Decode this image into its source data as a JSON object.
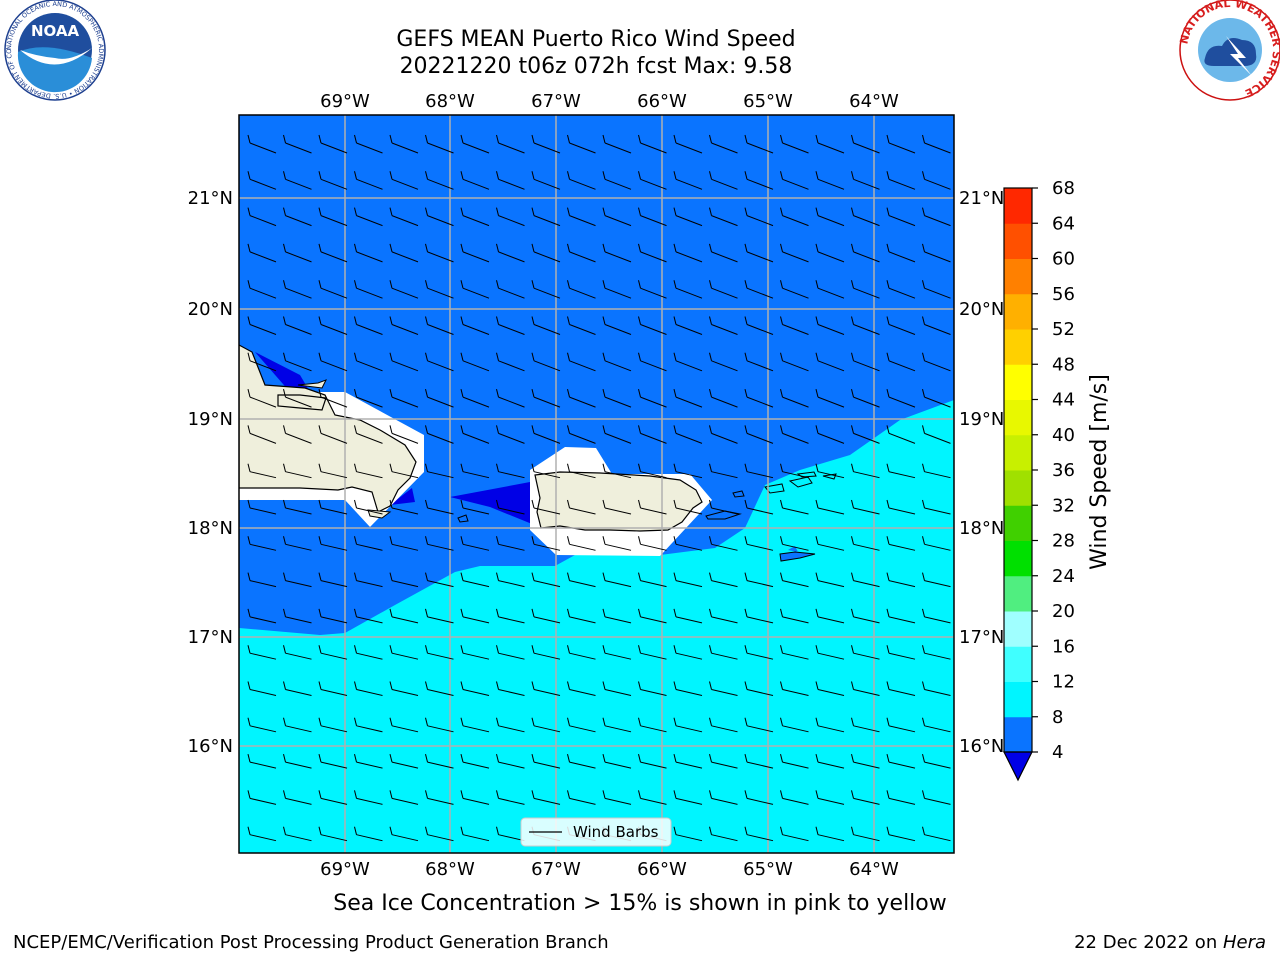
{
  "title": {
    "line1": "GEFS MEAN Puerto Rico Wind Speed",
    "line2": "20221220 t06z 072h fcst   Max: 9.58"
  },
  "map": {
    "lon_labels": [
      "69°W",
      "68°W",
      "67°W",
      "66°W",
      "65°W",
      "64°W"
    ],
    "lat_labels": [
      "21°N",
      "20°N",
      "19°N",
      "18°N",
      "17°N",
      "16°N"
    ],
    "legend_label": "Wind Barbs",
    "land_color": "#efefdc",
    "region_colors": {
      "4-8": "#0a74ff",
      "8-12": "#00f5ff",
      "below-4": "#0000e6"
    }
  },
  "colorbar": {
    "label": "Wind Speed [m/s]",
    "ticks": [
      "4",
      "8",
      "12",
      "16",
      "20",
      "24",
      "28",
      "32",
      "36",
      "40",
      "44",
      "48",
      "52",
      "56",
      "60",
      "64",
      "68"
    ],
    "colors": [
      "#0a74ff",
      "#00f5ff",
      "#40ffff",
      "#a0ffff",
      "#50ee80",
      "#00e000",
      "#40d000",
      "#a0e000",
      "#c8f000",
      "#e8f800",
      "#ffff00",
      "#ffd000",
      "#ffb000",
      "#ff8000",
      "#ff5000",
      "#ff2800",
      "#ff0000"
    ],
    "underflow_color": "#0000e6"
  },
  "caption": "Sea Ice Concentration > 15% is shown in pink to yellow",
  "footer": {
    "left": "NCEP/EMC/Verification Post Processing Product Generation Branch",
    "right_prefix": "22 Dec 2022 on ",
    "right_host": "Hera"
  },
  "logos": {
    "noaa": {
      "name": "NOAA",
      "ring": "NATIONAL OCEANIC AND ATMOSPHERIC ADMINISTRATION • U.S. DEPARTMENT OF COMMERCE"
    },
    "nws": {
      "ring": "NATIONAL WEATHER SERVICE"
    }
  }
}
